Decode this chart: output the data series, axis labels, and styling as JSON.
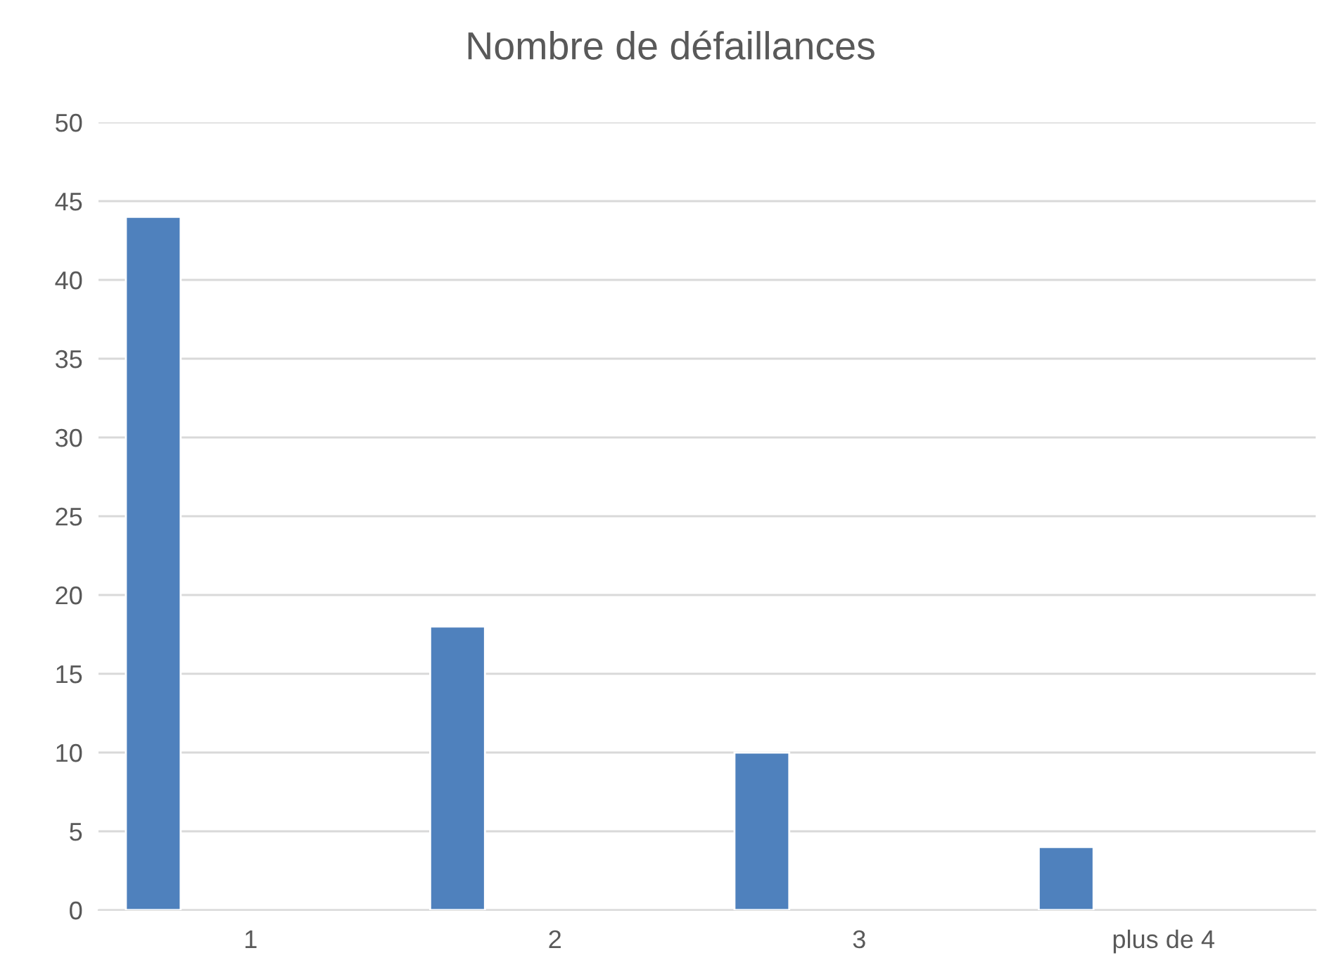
{
  "chart_data": {
    "type": "bar",
    "title": "Nombre de défaillances",
    "categories": [
      "1",
      "2",
      "3",
      "plus de 4"
    ],
    "values": [
      44,
      18,
      10,
      4
    ],
    "color": "#4f81bd",
    "ylim": [
      0,
      50
    ],
    "yticks": [
      0,
      5,
      10,
      15,
      20,
      25,
      30,
      35,
      40,
      45,
      50
    ],
    "grid": "y",
    "legend": false
  }
}
